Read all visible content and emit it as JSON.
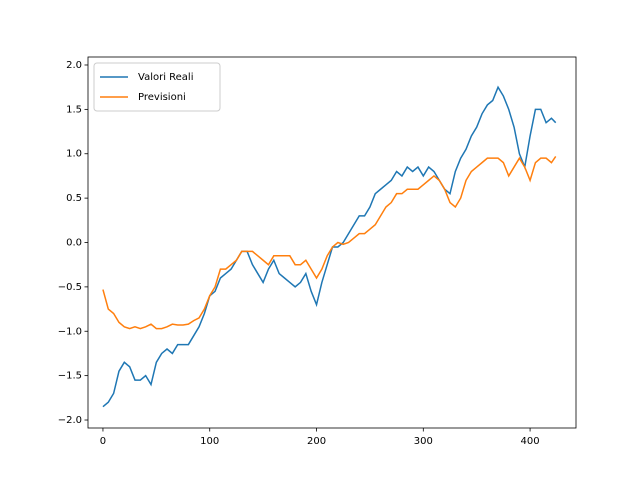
{
  "chart_data": {
    "type": "line",
    "x": [
      0,
      5,
      10,
      15,
      20,
      25,
      30,
      35,
      40,
      45,
      50,
      55,
      60,
      65,
      70,
      75,
      80,
      85,
      90,
      95,
      100,
      105,
      110,
      115,
      120,
      125,
      130,
      135,
      140,
      145,
      150,
      155,
      160,
      165,
      170,
      175,
      180,
      185,
      190,
      195,
      200,
      205,
      210,
      215,
      220,
      225,
      230,
      235,
      240,
      245,
      250,
      255,
      260,
      265,
      270,
      275,
      280,
      285,
      290,
      295,
      300,
      305,
      310,
      315,
      320,
      325,
      330,
      335,
      340,
      345,
      350,
      355,
      360,
      365,
      370,
      375,
      380,
      385,
      390,
      395,
      400,
      405,
      410,
      415,
      420,
      424
    ],
    "series": [
      {
        "name": "Valori Reali",
        "color": "#1f77b4",
        "values": [
          -1.85,
          -1.8,
          -1.7,
          -1.45,
          -1.35,
          -1.4,
          -1.55,
          -1.55,
          -1.5,
          -1.6,
          -1.35,
          -1.25,
          -1.2,
          -1.25,
          -1.15,
          -1.15,
          -1.15,
          -1.05,
          -0.95,
          -0.8,
          -0.6,
          -0.55,
          -0.4,
          -0.35,
          -0.3,
          -0.2,
          -0.1,
          -0.1,
          -0.25,
          -0.35,
          -0.45,
          -0.3,
          -0.2,
          -0.35,
          -0.4,
          -0.45,
          -0.5,
          -0.45,
          -0.35,
          -0.55,
          -0.7,
          -0.45,
          -0.25,
          -0.05,
          -0.05,
          0.0,
          0.1,
          0.2,
          0.3,
          0.3,
          0.4,
          0.55,
          0.6,
          0.65,
          0.7,
          0.8,
          0.75,
          0.85,
          0.8,
          0.85,
          0.75,
          0.85,
          0.8,
          0.7,
          0.6,
          0.55,
          0.8,
          0.95,
          1.05,
          1.2,
          1.3,
          1.45,
          1.55,
          1.6,
          1.75,
          1.65,
          1.5,
          1.3,
          1.0,
          0.85,
          1.2,
          1.5,
          1.5,
          1.35,
          1.4,
          1.35
        ]
      },
      {
        "name": "Previsioni",
        "color": "#ff7f0e",
        "values": [
          -0.53,
          -0.75,
          -0.8,
          -0.9,
          -0.95,
          -0.97,
          -0.95,
          -0.97,
          -0.95,
          -0.92,
          -0.97,
          -0.97,
          -0.95,
          -0.92,
          -0.93,
          -0.93,
          -0.92,
          -0.88,
          -0.85,
          -0.75,
          -0.6,
          -0.5,
          -0.3,
          -0.3,
          -0.25,
          -0.2,
          -0.1,
          -0.1,
          -0.1,
          -0.15,
          -0.2,
          -0.25,
          -0.15,
          -0.15,
          -0.15,
          -0.15,
          -0.25,
          -0.25,
          -0.2,
          -0.3,
          -0.4,
          -0.3,
          -0.15,
          -0.05,
          0.0,
          -0.02,
          0.0,
          0.05,
          0.1,
          0.1,
          0.15,
          0.2,
          0.3,
          0.4,
          0.45,
          0.55,
          0.55,
          0.6,
          0.6,
          0.6,
          0.65,
          0.7,
          0.75,
          0.7,
          0.6,
          0.45,
          0.4,
          0.5,
          0.7,
          0.8,
          0.85,
          0.9,
          0.95,
          0.95,
          0.95,
          0.9,
          0.75,
          0.85,
          0.95,
          0.85,
          0.7,
          0.9,
          0.95,
          0.95,
          0.9,
          0.97
        ]
      }
    ],
    "xlim": [
      -14,
      443
    ],
    "xticks": [
      0,
      100,
      200,
      300,
      400
    ],
    "ylim": [
      -2.09,
      2.09
    ],
    "yticks": [
      {
        "value": -2.0,
        "label": "−2.0"
      },
      {
        "value": -1.5,
        "label": "−1.5"
      },
      {
        "value": -1.0,
        "label": "−1.0"
      },
      {
        "value": -0.5,
        "label": "−0.5"
      },
      {
        "value": 0.0,
        "label": "0.0"
      },
      {
        "value": 0.5,
        "label": "0.5"
      },
      {
        "value": 1.0,
        "label": "1.0"
      },
      {
        "value": 1.5,
        "label": "1.5"
      },
      {
        "value": 2.0,
        "label": "2.0"
      }
    ],
    "legend": "upper left"
  }
}
